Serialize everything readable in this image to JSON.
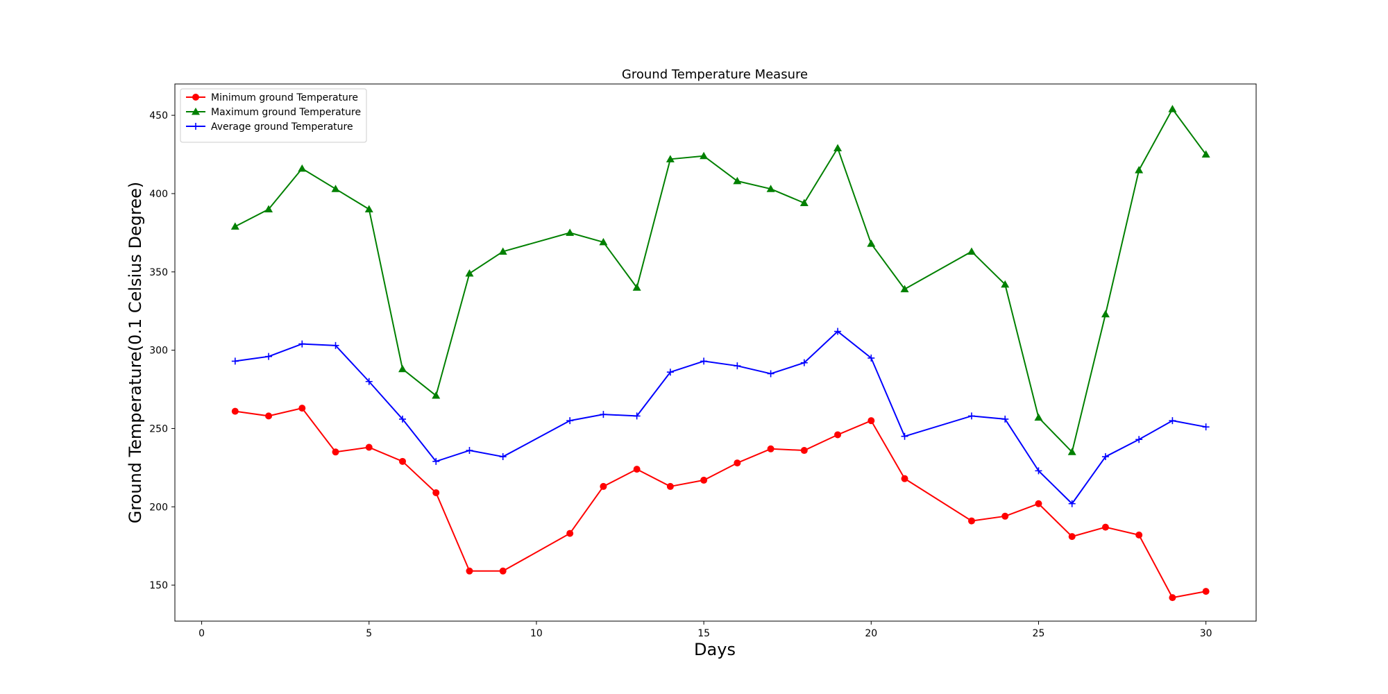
{
  "chart_data": {
    "type": "line",
    "title": "Ground Temperature Measure",
    "xlabel": "Days",
    "ylabel": "Ground Temperature(0.1 Celsius Degree)",
    "xlim": [
      -0.8,
      31.5
    ],
    "ylim": [
      127,
      470
    ],
    "xticks": [
      0,
      5,
      10,
      15,
      20,
      25,
      30
    ],
    "yticks": [
      150,
      200,
      250,
      300,
      350,
      400,
      450
    ],
    "grid": false,
    "legend_position": "upper-left",
    "series": [
      {
        "name": "Minimum ground Temperature",
        "color": "#ff0000",
        "marker": "circle",
        "x": [
          1,
          2,
          3,
          4,
          5,
          6,
          7,
          8,
          9,
          11,
          12,
          13,
          14,
          15,
          16,
          17,
          18,
          19,
          20,
          21,
          23,
          24,
          25,
          26,
          27,
          28,
          29,
          30
        ],
        "y": [
          261,
          258,
          263,
          235,
          238,
          229,
          209,
          159,
          159,
          183,
          213,
          224,
          213,
          217,
          228,
          237,
          236,
          246,
          255,
          218,
          191,
          194,
          202,
          181,
          187,
          182,
          142,
          146
        ]
      },
      {
        "name": "Maximum ground Temperature",
        "color": "#008000",
        "marker": "triangle",
        "x": [
          1,
          2,
          3,
          4,
          5,
          6,
          7,
          8,
          9,
          11,
          12,
          13,
          14,
          15,
          16,
          17,
          18,
          19,
          20,
          21,
          23,
          24,
          25,
          26,
          27,
          28,
          29,
          30
        ],
        "y": [
          379,
          390,
          416,
          403,
          390,
          288,
          271,
          349,
          363,
          375,
          369,
          340,
          422,
          424,
          408,
          403,
          394,
          429,
          368,
          339,
          363,
          342,
          257,
          235,
          323,
          415,
          454,
          425
        ]
      },
      {
        "name": "Average ground Temperature",
        "color": "#0000ff",
        "marker": "plus",
        "x": [
          1,
          2,
          3,
          4,
          5,
          6,
          7,
          8,
          9,
          11,
          12,
          13,
          14,
          15,
          16,
          17,
          18,
          19,
          20,
          21,
          23,
          24,
          25,
          26,
          27,
          28,
          29,
          30
        ],
        "y": [
          293,
          296,
          304,
          303,
          280,
          256,
          229,
          236,
          232,
          255,
          259,
          258,
          286,
          293,
          290,
          285,
          292,
          312,
          295,
          245,
          258,
          256,
          223,
          202,
          232,
          243,
          255,
          251
        ]
      }
    ]
  }
}
